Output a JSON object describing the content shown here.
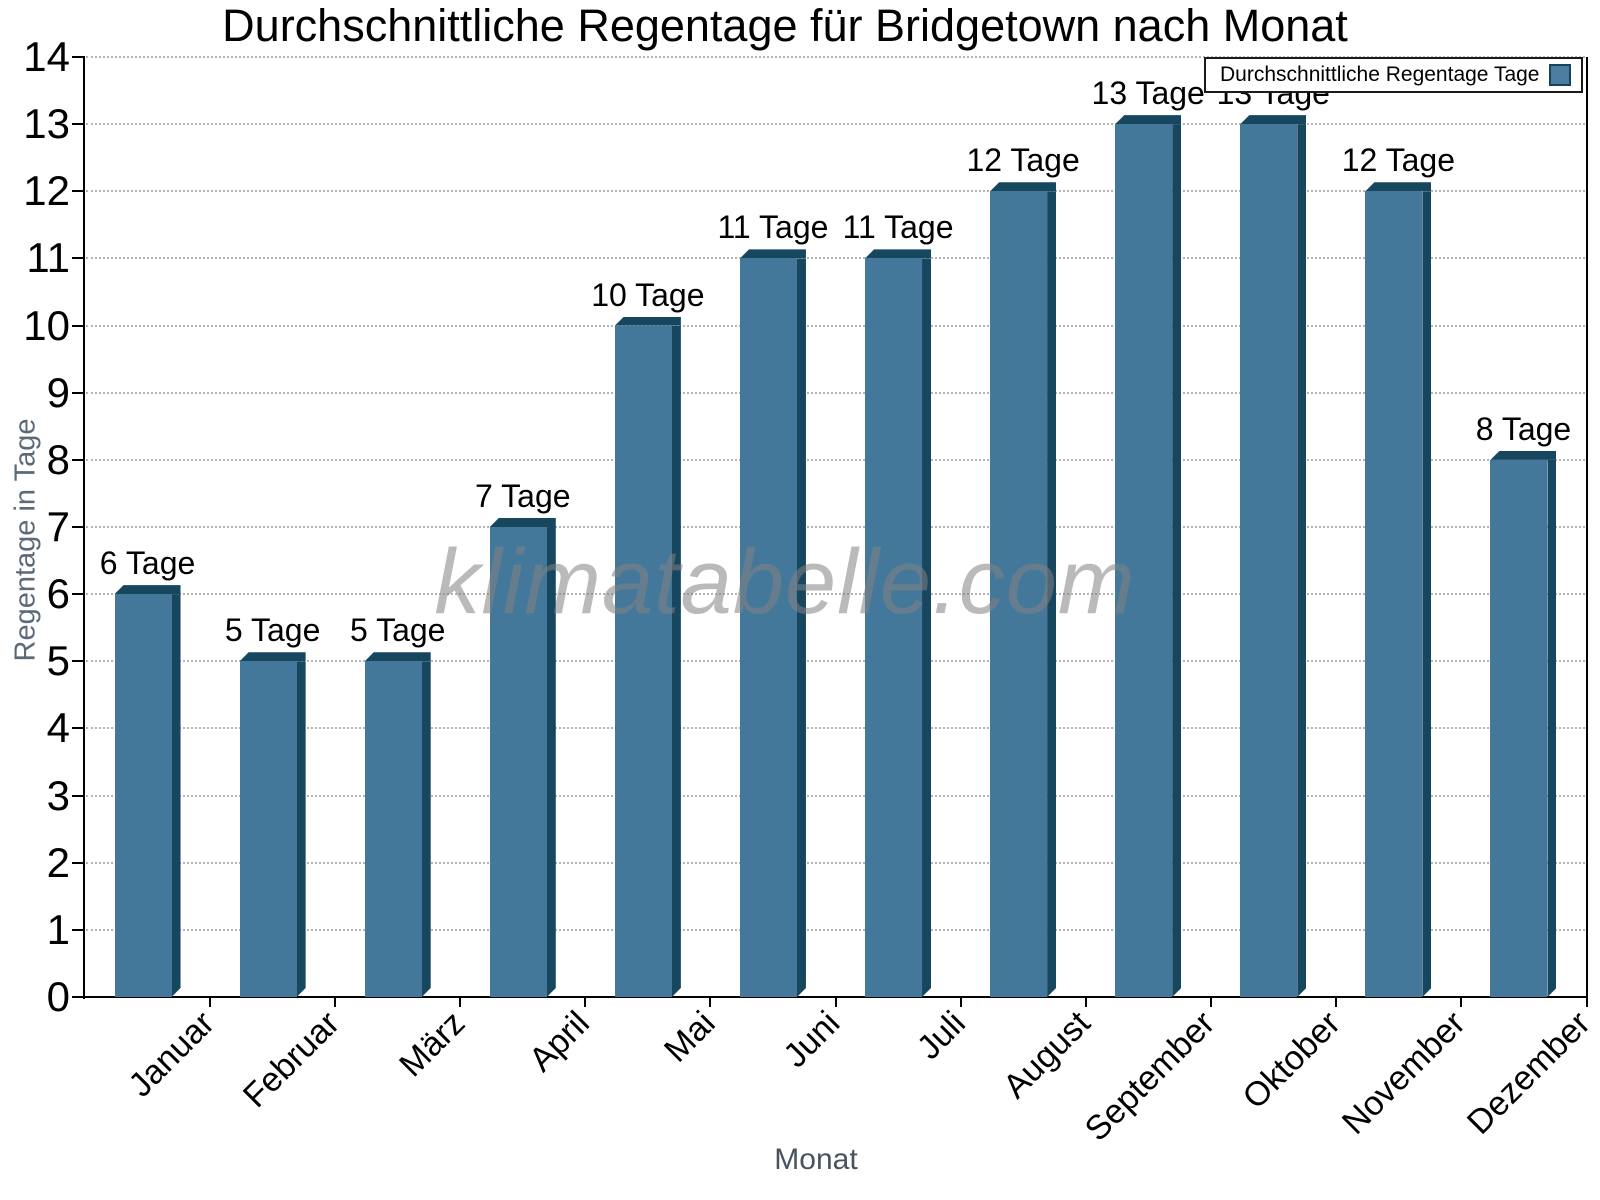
{
  "title": "Durchschnittliche Regentage für Bridgetown nach Monat",
  "watermark": "klimatabelle.com",
  "legend": {
    "label": "Durchschnittliche Regentage Tage"
  },
  "axes": {
    "x_title": "Monat",
    "y_title": "Regentage in Tage"
  },
  "chart_data": {
    "type": "bar",
    "title": "Durchschnittliche Regentage für Bridgetown nach Monat",
    "categories": [
      "Januar",
      "Februar",
      "März",
      "April",
      "Mai",
      "Juni",
      "Juli",
      "August",
      "September",
      "Oktober",
      "November",
      "Dezember"
    ],
    "values": [
      6,
      5,
      5,
      7,
      10,
      11,
      11,
      12,
      13,
      13,
      12,
      8
    ],
    "bar_labels": [
      "6 Tage",
      "5 Tage",
      "5 Tage",
      "7 Tage",
      "10 Tage",
      "11 Tage",
      "11 Tage",
      "12 Tage",
      "13 Tage",
      "13 Tage",
      "12 Tage",
      "8 Tage"
    ],
    "series_name": "Durchschnittliche Regentage Tage",
    "xlabel": "Monat",
    "ylabel": "Regentage in Tage",
    "ylim": [
      0,
      14
    ],
    "yticks": [
      0,
      1,
      2,
      3,
      4,
      5,
      6,
      7,
      8,
      9,
      10,
      11,
      12,
      13,
      14
    ],
    "grid": "horizontal-dotted",
    "legend_position": "top-right",
    "colors": {
      "bar_face": "#44789b",
      "bar_shadow": "#17465f",
      "legend_marker": "#4a7da0",
      "grid": "#b4b4b4",
      "axis": "#000000",
      "watermark": "#878787",
      "axis_title": "#5a6a79"
    }
  }
}
